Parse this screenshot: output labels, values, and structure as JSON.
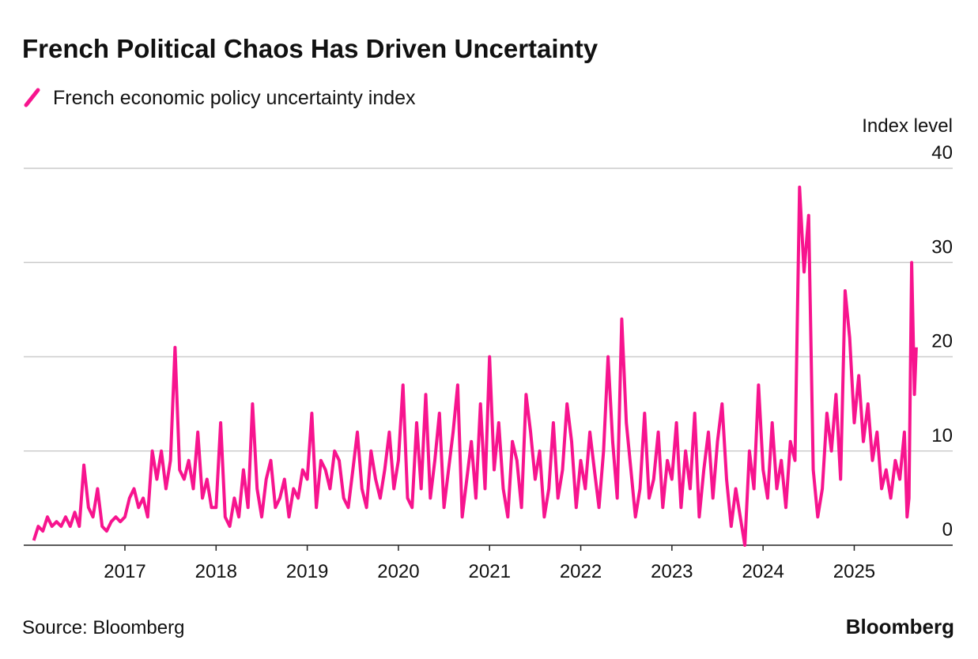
{
  "chart_data": {
    "type": "line",
    "title": "French Political Chaos Has Driven Uncertainty",
    "y_axis_label": "Index level",
    "source": "Source: Bloomberg",
    "brand": "Bloomberg",
    "x": [
      2016,
      2016.05,
      2016.1,
      2016.15,
      2016.2,
      2016.25,
      2016.3,
      2016.35,
      2016.4,
      2016.45,
      2016.5,
      2016.55,
      2016.6,
      2016.65,
      2016.7,
      2016.75,
      2016.8,
      2016.85,
      2016.9,
      2016.95,
      2017,
      2017.05,
      2017.1,
      2017.15,
      2017.2,
      2017.25,
      2017.3,
      2017.35,
      2017.4,
      2017.45,
      2017.5,
      2017.55,
      2017.6,
      2017.65,
      2017.7,
      2017.75,
      2017.8,
      2017.85,
      2017.9,
      2017.95,
      2018,
      2018.05,
      2018.1,
      2018.15,
      2018.2,
      2018.25,
      2018.3,
      2018.35,
      2018.4,
      2018.45,
      2018.5,
      2018.55,
      2018.6,
      2018.65,
      2018.7,
      2018.75,
      2018.8,
      2018.85,
      2018.9,
      2018.95,
      2019,
      2019.05,
      2019.1,
      2019.15,
      2019.2,
      2019.25,
      2019.3,
      2019.35,
      2019.4,
      2019.45,
      2019.5,
      2019.55,
      2019.6,
      2019.65,
      2019.7,
      2019.75,
      2019.8,
      2019.85,
      2019.9,
      2019.95,
      2020,
      2020.05,
      2020.1,
      2020.15,
      2020.2,
      2020.25,
      2020.3,
      2020.35,
      2020.4,
      2020.45,
      2020.5,
      2020.55,
      2020.6,
      2020.65,
      2020.7,
      2020.75,
      2020.8,
      2020.85,
      2020.9,
      2020.95,
      2021,
      2021.05,
      2021.1,
      2021.15,
      2021.2,
      2021.25,
      2021.3,
      2021.35,
      2021.4,
      2021.45,
      2021.5,
      2021.55,
      2021.6,
      2021.65,
      2021.7,
      2021.75,
      2021.8,
      2021.85,
      2021.9,
      2021.95,
      2022,
      2022.05,
      2022.1,
      2022.15,
      2022.2,
      2022.25,
      2022.3,
      2022.35,
      2022.4,
      2022.45,
      2022.5,
      2022.55,
      2022.6,
      2022.65,
      2022.7,
      2022.75,
      2022.8,
      2022.85,
      2022.9,
      2022.95,
      2023,
      2023.05,
      2023.1,
      2023.15,
      2023.2,
      2023.25,
      2023.3,
      2023.35,
      2023.4,
      2023.45,
      2023.5,
      2023.55,
      2023.6,
      2023.65,
      2023.7,
      2023.75,
      2023.8,
      2023.85,
      2023.9,
      2023.95,
      2024,
      2024.05,
      2024.1,
      2024.15,
      2024.2,
      2024.25,
      2024.3,
      2024.35,
      2024.4,
      2024.45,
      2024.5,
      2024.55,
      2024.6,
      2024.65,
      2024.7,
      2024.75,
      2024.8,
      2024.85,
      2024.9,
      2024.95,
      2025,
      2025.05,
      2025.1,
      2025.15,
      2025.2,
      2025.25,
      2025.3,
      2025.35,
      2025.4,
      2025.45,
      2025.5,
      2025.55,
      2025.58,
      2025.6,
      2025.63,
      2025.66,
      2025.68
    ],
    "series": [
      {
        "name": "French economic policy uncertainty index",
        "color": "#f7148e",
        "values": [
          0.5,
          2,
          1.5,
          3,
          2,
          2.5,
          2,
          3,
          2,
          3.5,
          2,
          8.5,
          4,
          3,
          6,
          2,
          1.5,
          2.5,
          3,
          2.5,
          3,
          5,
          6,
          4,
          5,
          3,
          10,
          7,
          10,
          6,
          9,
          21,
          8,
          7,
          9,
          6,
          12,
          5,
          7,
          4,
          4,
          13,
          3,
          2,
          5,
          3,
          8,
          4,
          15,
          6,
          3,
          7,
          9,
          4,
          5,
          7,
          3,
          6,
          5,
          8,
          7,
          14,
          4,
          9,
          8,
          6,
          10,
          9,
          5,
          4,
          8,
          12,
          6,
          4,
          10,
          7,
          5,
          8,
          12,
          6,
          9,
          17,
          5,
          4,
          13,
          6,
          16,
          5,
          9,
          14,
          4,
          8,
          12,
          17,
          3,
          7,
          11,
          5,
          15,
          6,
          20,
          8,
          13,
          6,
          3,
          11,
          9,
          4,
          16,
          12,
          7,
          10,
          3,
          6,
          13,
          5,
          8,
          15,
          11,
          4,
          9,
          6,
          12,
          8,
          4,
          10,
          20,
          11,
          5,
          24,
          13,
          8,
          3,
          6,
          14,
          5,
          7,
          12,
          4,
          9,
          7,
          13,
          4,
          10,
          6,
          14,
          3,
          8,
          12,
          5,
          11,
          15,
          7,
          2,
          6,
          3,
          0,
          10,
          6,
          17,
          8,
          5,
          13,
          6,
          9,
          4,
          11,
          9,
          38,
          29,
          35,
          8,
          3,
          6,
          14,
          10,
          16,
          7,
          27,
          22,
          13,
          18,
          11,
          15,
          9,
          12,
          6,
          8,
          5,
          9,
          7,
          12,
          3,
          5,
          30,
          16,
          21
        ]
      }
    ],
    "xlim": [
      2015.89,
      2026.08
    ],
    "xticks": [
      2017,
      2018,
      2019,
      2020,
      2021,
      2022,
      2023,
      2024,
      2025
    ],
    "ylim": [
      0,
      40
    ],
    "yticks": [
      0,
      10,
      20,
      30,
      40
    ],
    "grid": true
  }
}
